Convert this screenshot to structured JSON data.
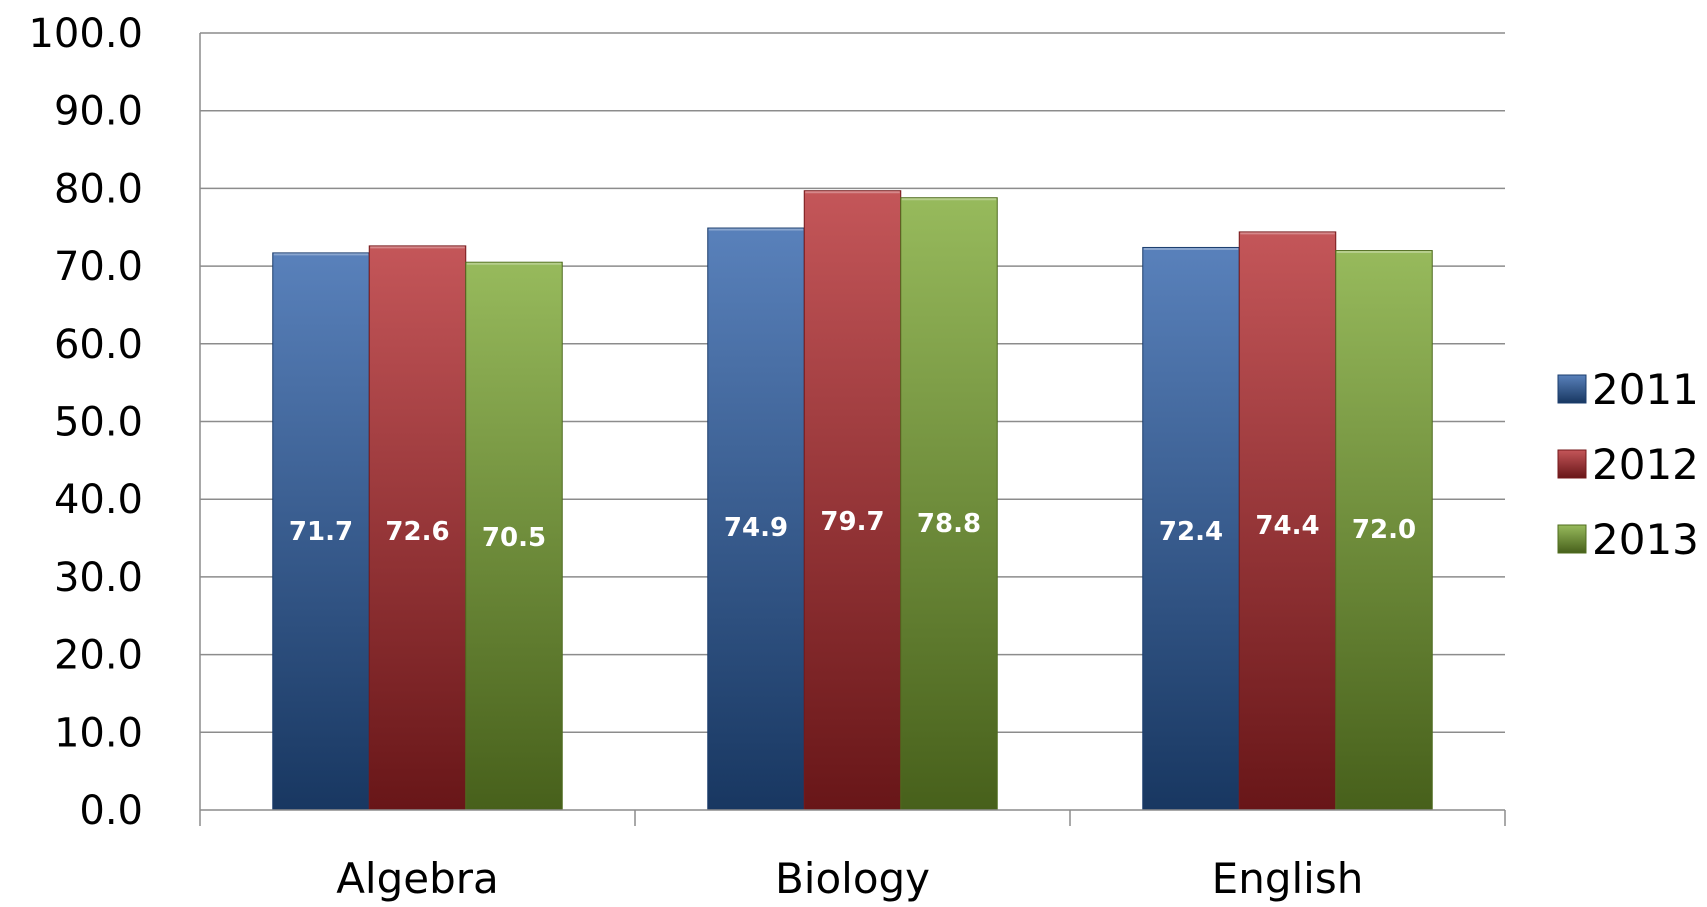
{
  "chart_data": {
    "type": "bar",
    "title": "",
    "xlabel": "",
    "ylabel": "",
    "categories": [
      "Algebra",
      "Biology",
      "English"
    ],
    "series": [
      {
        "name": "2011",
        "values": [
          71.7,
          74.9,
          72.4
        ],
        "color": "#2a5ea8"
      },
      {
        "name": "2012",
        "values": [
          72.6,
          79.7,
          74.4
        ],
        "color": "#b3262a"
      },
      {
        "name": "2013",
        "values": [
          70.5,
          78.8,
          72.0
        ],
        "color": "#7aa62e"
      }
    ],
    "ylim": [
      0,
      100
    ],
    "y_ticks": [
      "0.0",
      "10.0",
      "20.0",
      "30.0",
      "40.0",
      "50.0",
      "60.0",
      "70.0",
      "80.0",
      "90.0",
      "100.0"
    ],
    "data_labels": [
      [
        "71.7",
        "74.9",
        "72.4"
      ],
      [
        "72.6",
        "79.7",
        "74.4"
      ],
      [
        "70.5",
        "78.8",
        "72.0"
      ]
    ],
    "grid": true,
    "legend_position": "right"
  }
}
